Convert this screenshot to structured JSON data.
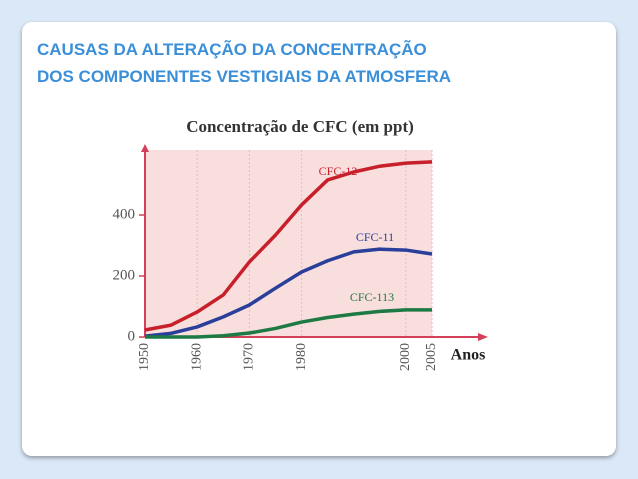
{
  "slide": {
    "title_lines": [
      "CAUSAS DA ALTERAÇÃO DA CONCENTRAÇÃO",
      "DOS COMPONENTES VESTIGIAIS DA ATMOSFERA"
    ]
  },
  "chart_data": {
    "type": "line",
    "title": "Concentração de CFC (em ppt)",
    "x_label": "Anos",
    "x": [
      1950,
      1955,
      1960,
      1965,
      1970,
      1975,
      1980,
      1985,
      1990,
      1995,
      2000,
      2005
    ],
    "series": [
      {
        "name": "CFC-12",
        "color": "#c8202a",
        "values": [
          23,
          39,
          82,
          138,
          246,
          334,
          433,
          515,
          541,
          560,
          570,
          574
        ]
      },
      {
        "name": "CFC-11",
        "color": "#2a3f9a",
        "values": [
          3,
          12,
          33,
          66,
          105,
          160,
          213,
          250,
          279,
          288,
          285,
          272
        ]
      },
      {
        "name": "CFC-113",
        "color": "#1e7a44",
        "values": [
          0,
          0,
          0,
          4,
          13,
          28,
          49,
          64,
          75,
          84,
          89,
          89
        ]
      }
    ],
    "xlim": [
      1950,
      2005
    ],
    "xticks": [
      1950,
      1960,
      1970,
      1980,
      2000,
      2005
    ],
    "ylim": [
      0,
      600
    ],
    "yticks": [
      0,
      200,
      400
    ]
  }
}
